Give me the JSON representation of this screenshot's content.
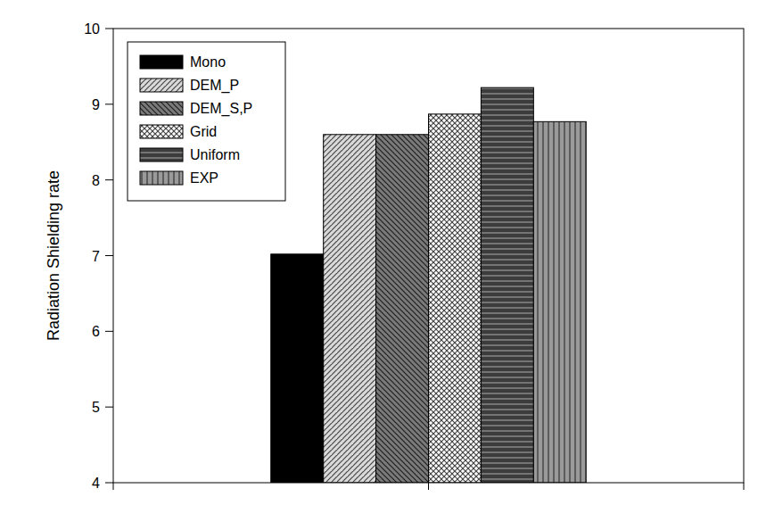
{
  "chart_data": {
    "type": "bar",
    "y_label": "Radiation Shielding rate",
    "categories": [
      null
    ],
    "series": [
      {
        "name": "Mono",
        "color": "#000000",
        "values": [
          7.02
        ]
      },
      {
        "name": "DEM_P",
        "color": "#d9d9d9",
        "values": [
          8.6
        ]
      },
      {
        "name": "DEM_S,P",
        "color": "#7a7a7a",
        "values": [
          8.6
        ]
      },
      {
        "name": "Grid",
        "color": "#ffffff",
        "values": [
          8.87
        ]
      },
      {
        "name": "Uniform",
        "color": "#3c3c3c",
        "values": [
          9.22
        ]
      },
      {
        "name": "EXP",
        "color": "#9a9a9a",
        "values": [
          8.77
        ]
      }
    ],
    "ylim": [
      4,
      10
    ],
    "yticks": [
      4,
      5,
      6,
      7,
      8,
      9,
      10
    ],
    "grid": false,
    "legend": "upper left"
  }
}
